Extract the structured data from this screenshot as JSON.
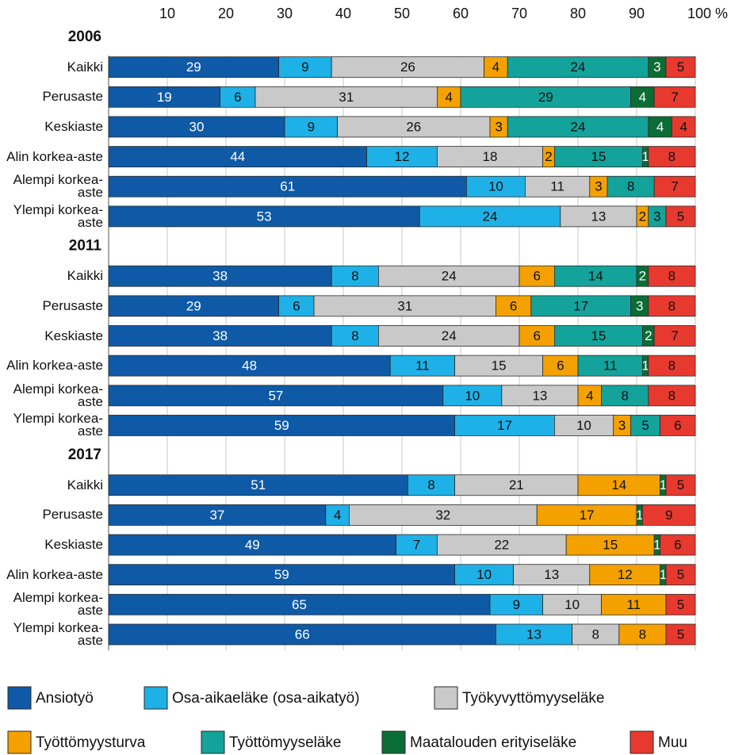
{
  "chart_data": {
    "type": "stacked-bar-horizontal",
    "xlim": [
      0,
      100
    ],
    "xticks": [
      10,
      20,
      30,
      40,
      50,
      60,
      70,
      80,
      90,
      {
        "value": 100,
        "label": "100 %"
      }
    ],
    "grid": true,
    "groups": [
      {
        "title": "2006",
        "categories": [
          "Kaikki",
          "Perusaste",
          "Keskiaste",
          "Alin korkea-aste",
          "Alempi korkea-aste",
          "Ylempi korkea-aste"
        ]
      },
      {
        "title": "2011",
        "categories": [
          "Kaikki",
          "Perusaste",
          "Keskiaste",
          "Alin korkea-aste",
          "Alempi korkea-aste",
          "Ylempi korkea-aste"
        ]
      },
      {
        "title": "2017",
        "categories": [
          "Kaikki",
          "Perusaste",
          "Keskiaste",
          "Alin korkea-aste",
          "Alempi korkea-aste",
          "Ylempi korkea-aste"
        ]
      }
    ],
    "series": [
      {
        "name": "Ansiotyö",
        "color": "#0e5aa7",
        "values": [
          29,
          19,
          30,
          44,
          61,
          53,
          38,
          29,
          38,
          48,
          57,
          59,
          51,
          37,
          49,
          59,
          65,
          66
        ]
      },
      {
        "name": "Osa-aikaeläke (osa-aikatyö)",
        "color": "#1eb1e7",
        "values": [
          9,
          6,
          9,
          12,
          10,
          24,
          8,
          6,
          8,
          11,
          10,
          17,
          8,
          4,
          7,
          10,
          9,
          13
        ]
      },
      {
        "name": "Työkyvyttömyyseläke",
        "color": "#c9c9c9",
        "values": [
          26,
          31,
          26,
          18,
          11,
          13,
          24,
          31,
          24,
          15,
          13,
          10,
          21,
          32,
          22,
          13,
          10,
          8
        ]
      },
      {
        "name": "Työttömyysturva",
        "color": "#f4a100",
        "values": [
          4,
          4,
          3,
          2,
          3,
          2,
          6,
          6,
          6,
          6,
          4,
          3,
          14,
          17,
          15,
          12,
          11,
          8
        ]
      },
      {
        "name": "Työttömyyseläke",
        "color": "#13a39a",
        "values": [
          24,
          29,
          24,
          15,
          8,
          3,
          14,
          17,
          15,
          11,
          8,
          5,
          null,
          null,
          null,
          null,
          null,
          null
        ]
      },
      {
        "name": "Maatalouden erityiseläke",
        "color": "#0a6d36",
        "values": [
          3,
          4,
          4,
          1,
          null,
          null,
          2,
          3,
          2,
          1,
          null,
          null,
          1,
          1,
          1,
          1,
          null,
          null
        ]
      },
      {
        "name": "Muu",
        "color": "#e8392f",
        "values": [
          5,
          7,
          4,
          8,
          7,
          5,
          8,
          8,
          7,
          8,
          8,
          6,
          5,
          9,
          6,
          5,
          5,
          5
        ]
      }
    ]
  }
}
